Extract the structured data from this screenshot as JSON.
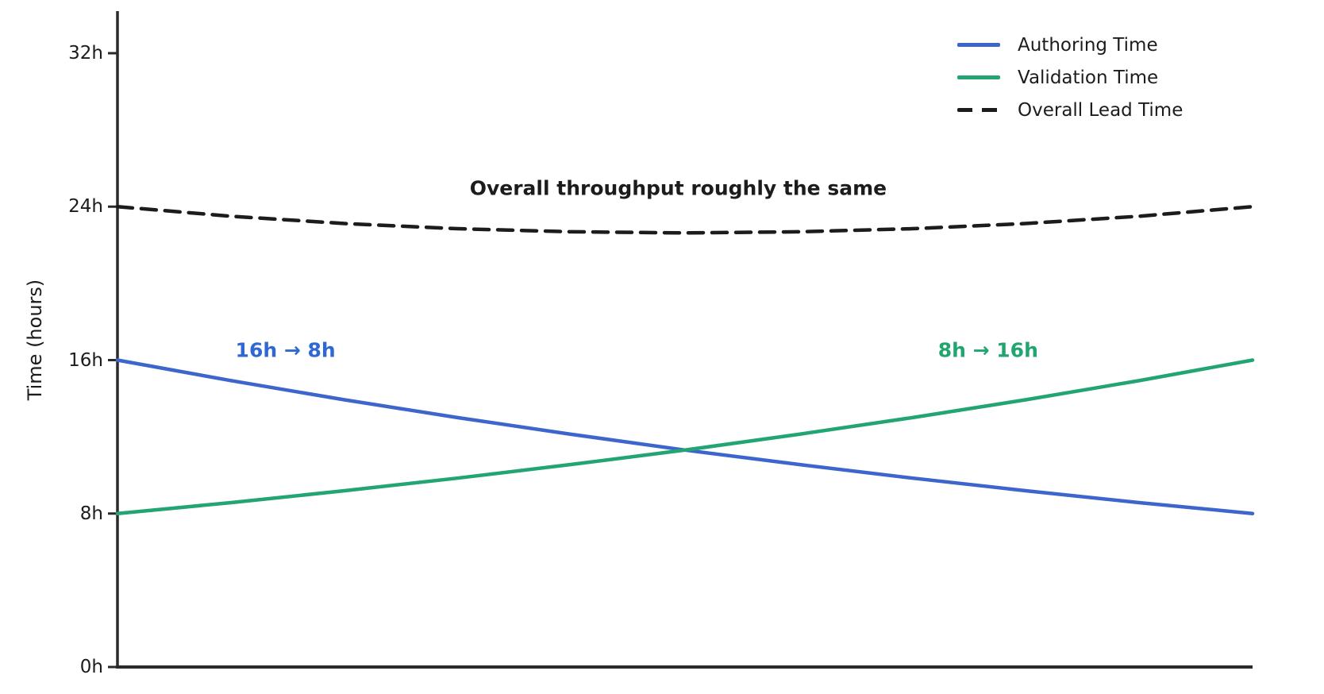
{
  "figure": {
    "background": "#ffffff",
    "axis_color": "#2a2a2a",
    "text_color": "#1c1c1c"
  },
  "chart_data": {
    "type": "line",
    "title": "",
    "xlabel": "",
    "ylabel": "Time (hours)",
    "xlim": [
      0,
      1
    ],
    "ylim": [
      0,
      34.2
    ],
    "grid": false,
    "legend_position": "upper right",
    "x_tick_labels": [],
    "x": [
      0,
      0.1,
      0.2,
      0.3,
      0.4,
      0.5,
      0.6,
      0.7,
      0.8,
      0.9,
      1.0
    ],
    "series": [
      {
        "name": "Authoring Time",
        "color": "#3d66cd",
        "style": "solid",
        "values": [
          16,
          14.93,
          13.93,
          13.0,
          12.13,
          11.31,
          10.56,
          9.85,
          9.19,
          8.57,
          8.0
        ]
      },
      {
        "name": "Validation Time",
        "color": "#22a573",
        "style": "solid",
        "values": [
          8.0,
          8.57,
          9.19,
          9.85,
          10.56,
          11.31,
          12.13,
          13.0,
          13.93,
          14.93,
          16.0
        ]
      },
      {
        "name": "Overall Lead Time",
        "color": "#1c1c1c",
        "style": "dashed",
        "values": [
          24.0,
          23.5,
          23.12,
          22.85,
          22.69,
          22.63,
          22.69,
          22.85,
          23.12,
          23.5,
          24.0
        ]
      }
    ],
    "yticks": [
      {
        "value": 0,
        "label": "0h"
      },
      {
        "value": 8,
        "label": "8h"
      },
      {
        "value": 16,
        "label": "16h"
      },
      {
        "value": 24,
        "label": "24h"
      },
      {
        "value": 32,
        "label": "32h"
      }
    ],
    "annotations": [
      {
        "text": "Overall throughput roughly the same",
        "color": "#1c1c1c",
        "x": 0.494,
        "y": 24.96
      },
      {
        "text": "16h → 8h",
        "color": "#2f68d3",
        "x": 0.148,
        "y": 16.52
      },
      {
        "text": "8h → 16h",
        "color": "#21a56f",
        "x": 0.767,
        "y": 16.52
      }
    ]
  }
}
